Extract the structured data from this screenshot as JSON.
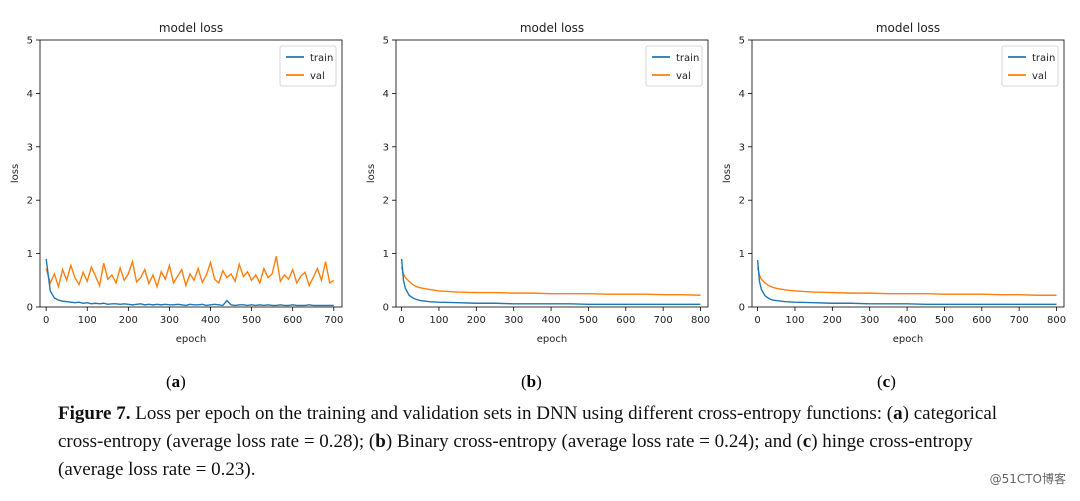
{
  "chart_data": [
    {
      "type": "line",
      "title": "model loss",
      "xlabel": "epoch",
      "ylabel": "loss",
      "xlim": [
        -15,
        720
      ],
      "ylim": [
        0,
        5
      ],
      "xticks": [
        0,
        100,
        200,
        300,
        400,
        500,
        600,
        700
      ],
      "yticks": [
        0,
        1,
        2,
        3,
        4,
        5
      ],
      "legend_position": "top-right",
      "x": [
        0,
        10,
        20,
        30,
        40,
        50,
        60,
        70,
        80,
        90,
        100,
        110,
        120,
        130,
        140,
        150,
        160,
        170,
        180,
        190,
        200,
        210,
        220,
        230,
        240,
        250,
        260,
        270,
        280,
        290,
        300,
        310,
        320,
        330,
        340,
        350,
        360,
        370,
        380,
        390,
        400,
        410,
        420,
        430,
        440,
        450,
        460,
        470,
        480,
        490,
        500,
        510,
        520,
        530,
        540,
        550,
        560,
        570,
        580,
        590,
        600,
        610,
        620,
        630,
        640,
        650,
        660,
        670,
        680,
        690,
        700
      ],
      "series": [
        {
          "name": "train",
          "color": "#1f77b4",
          "values": [
            0.9,
            0.3,
            0.17,
            0.13,
            0.11,
            0.1,
            0.09,
            0.08,
            0.09,
            0.07,
            0.08,
            0.06,
            0.07,
            0.06,
            0.07,
            0.05,
            0.06,
            0.06,
            0.05,
            0.06,
            0.05,
            0.04,
            0.05,
            0.06,
            0.04,
            0.05,
            0.04,
            0.05,
            0.04,
            0.05,
            0.04,
            0.04,
            0.05,
            0.04,
            0.03,
            0.05,
            0.04,
            0.04,
            0.05,
            0.03,
            0.04,
            0.05,
            0.04,
            0.03,
            0.12,
            0.04,
            0.03,
            0.04,
            0.04,
            0.03,
            0.04,
            0.03,
            0.04,
            0.03,
            0.04,
            0.03,
            0.03,
            0.04,
            0.03,
            0.03,
            0.04,
            0.03,
            0.03,
            0.03,
            0.04,
            0.03,
            0.03,
            0.03,
            0.03,
            0.03,
            0.03
          ]
        },
        {
          "name": "val",
          "color": "#ff7f0e",
          "values": [
            0.72,
            0.45,
            0.62,
            0.38,
            0.7,
            0.5,
            0.78,
            0.55,
            0.42,
            0.65,
            0.48,
            0.75,
            0.58,
            0.4,
            0.82,
            0.52,
            0.6,
            0.45,
            0.73,
            0.5,
            0.62,
            0.85,
            0.47,
            0.55,
            0.7,
            0.44,
            0.6,
            0.38,
            0.66,
            0.52,
            0.78,
            0.45,
            0.58,
            0.7,
            0.4,
            0.62,
            0.5,
            0.72,
            0.46,
            0.6,
            0.83,
            0.52,
            0.45,
            0.68,
            0.55,
            0.62,
            0.48,
            0.8,
            0.57,
            0.66,
            0.5,
            0.6,
            0.45,
            0.72,
            0.55,
            0.62,
            0.95,
            0.48,
            0.6,
            0.52,
            0.7,
            0.45,
            0.58,
            0.65,
            0.4,
            0.55,
            0.72,
            0.5,
            0.85,
            0.45,
            0.5
          ]
        }
      ]
    },
    {
      "type": "line",
      "title": "model loss",
      "xlabel": "epoch",
      "ylabel": "loss",
      "xlim": [
        -15,
        820
      ],
      "ylim": [
        0,
        5
      ],
      "xticks": [
        0,
        100,
        200,
        300,
        400,
        500,
        600,
        700,
        800
      ],
      "yticks": [
        0,
        1,
        2,
        3,
        4,
        5
      ],
      "legend_position": "top-right",
      "x": [
        0,
        5,
        10,
        20,
        30,
        40,
        50,
        75,
        100,
        150,
        200,
        250,
        300,
        350,
        400,
        450,
        500,
        550,
        600,
        650,
        700,
        750,
        800
      ],
      "series": [
        {
          "name": "train",
          "color": "#1f77b4",
          "values": [
            0.9,
            0.5,
            0.35,
            0.22,
            0.17,
            0.14,
            0.12,
            0.1,
            0.09,
            0.08,
            0.07,
            0.07,
            0.06,
            0.06,
            0.06,
            0.06,
            0.05,
            0.05,
            0.05,
            0.05,
            0.05,
            0.05,
            0.05
          ]
        },
        {
          "name": "val",
          "color": "#ff7f0e",
          "values": [
            0.75,
            0.62,
            0.55,
            0.48,
            0.42,
            0.38,
            0.36,
            0.33,
            0.3,
            0.28,
            0.27,
            0.27,
            0.26,
            0.26,
            0.25,
            0.25,
            0.25,
            0.24,
            0.24,
            0.24,
            0.23,
            0.23,
            0.22
          ]
        }
      ]
    },
    {
      "type": "line",
      "title": "model loss",
      "xlabel": "epoch",
      "ylabel": "loss",
      "xlim": [
        -15,
        820
      ],
      "ylim": [
        0,
        5
      ],
      "xticks": [
        0,
        100,
        200,
        300,
        400,
        500,
        600,
        700,
        800
      ],
      "yticks": [
        0,
        1,
        2,
        3,
        4,
        5
      ],
      "legend_position": "top-right",
      "x": [
        0,
        5,
        10,
        20,
        30,
        40,
        50,
        75,
        100,
        150,
        200,
        250,
        300,
        350,
        400,
        450,
        500,
        550,
        600,
        650,
        700,
        750,
        800
      ],
      "series": [
        {
          "name": "train",
          "color": "#1f77b4",
          "values": [
            0.88,
            0.48,
            0.33,
            0.21,
            0.16,
            0.13,
            0.12,
            0.1,
            0.09,
            0.08,
            0.07,
            0.07,
            0.06,
            0.06,
            0.06,
            0.05,
            0.05,
            0.05,
            0.05,
            0.05,
            0.05,
            0.05,
            0.05
          ]
        },
        {
          "name": "val",
          "color": "#ff7f0e",
          "values": [
            0.74,
            0.6,
            0.52,
            0.45,
            0.4,
            0.37,
            0.35,
            0.32,
            0.3,
            0.28,
            0.27,
            0.26,
            0.26,
            0.25,
            0.25,
            0.25,
            0.24,
            0.24,
            0.24,
            0.23,
            0.23,
            0.22,
            0.22
          ]
        }
      ]
    }
  ],
  "panels": {
    "a": "a",
    "b": "b",
    "c": "c"
  },
  "caption": {
    "label": "Figure 7.",
    "p1": " Loss per epoch on the training and validation sets in DNN using different cross-entropy functions: (",
    "a": "a",
    "p2": ") categorical cross-entropy (average loss rate = 0.28); (",
    "b": "b",
    "p3": ") Binary cross-entropy (average loss rate = 0.24); and (",
    "c": "c",
    "p4": ") hinge cross-entropy (average loss rate = 0.23)."
  },
  "watermark": "@51CTO博客"
}
